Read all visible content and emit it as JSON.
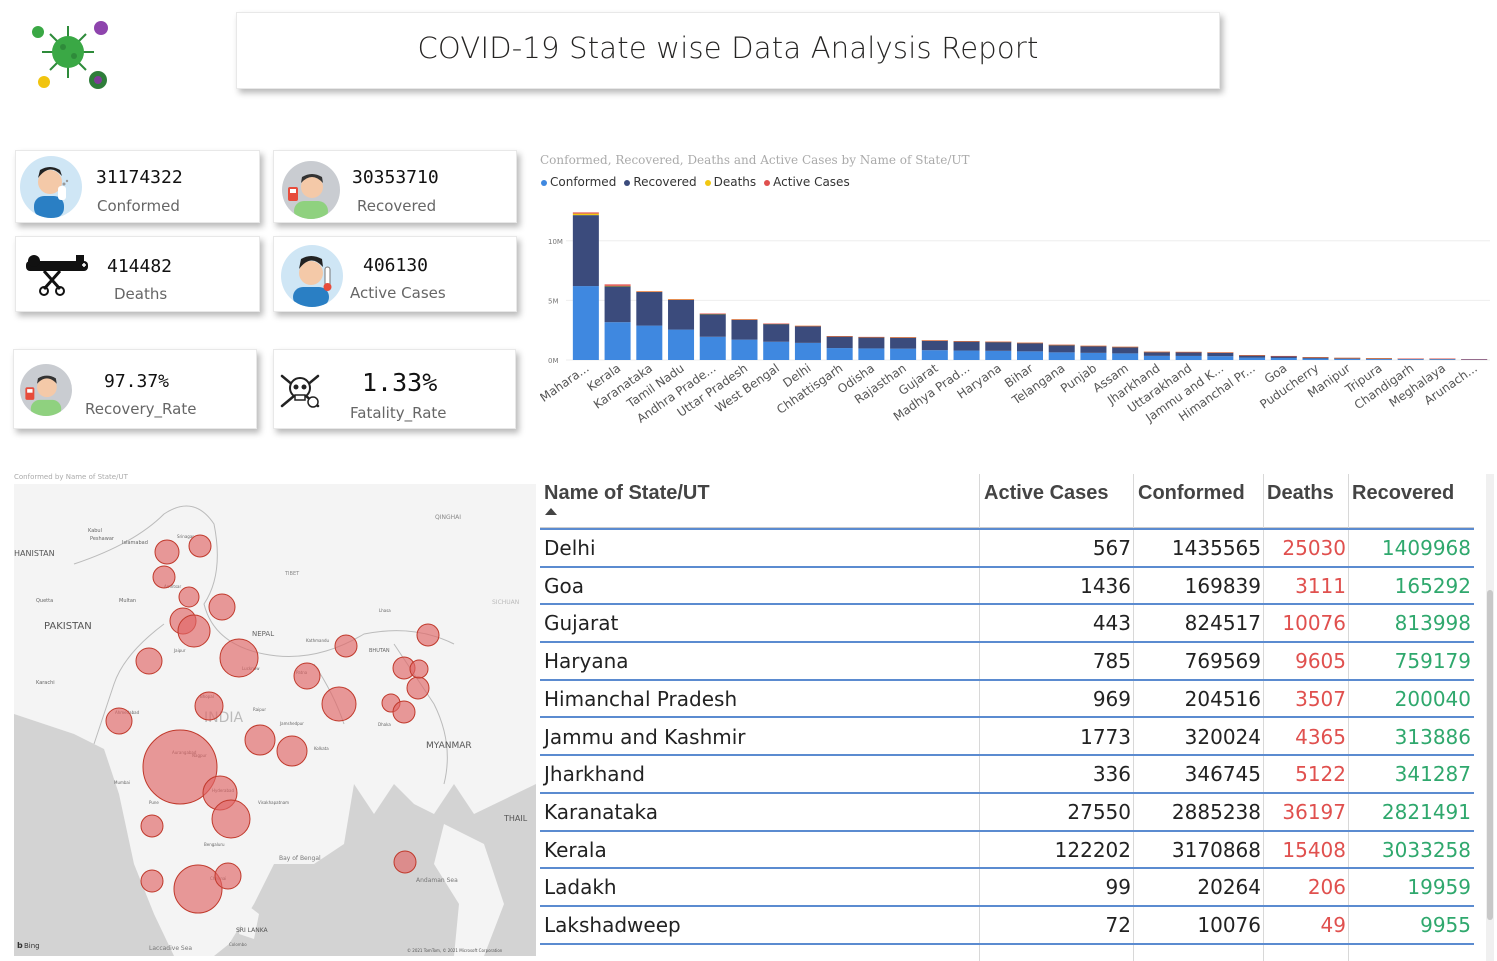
{
  "report_title": "COVID-19 State wise Data Analysis Report",
  "kpis": {
    "confirmed": {
      "value": "31174322",
      "label": "Conformed"
    },
    "recovered": {
      "value": "30353710",
      "label": "Recovered"
    },
    "deaths": {
      "value": "414482",
      "label": "Deaths"
    },
    "active": {
      "value": "406130",
      "label": "Active Cases"
    },
    "recovery_rate": {
      "value": "97.37%",
      "label": "Recovery_Rate"
    },
    "fatality_rate": {
      "value": "1.33%",
      "label": "Fatality_Rate"
    }
  },
  "colors": {
    "conformed": "#3f88e0",
    "recovered": "#3b4b7c",
    "deaths": "#f2c811",
    "active": "#e0504e",
    "death_text": "#e0504e",
    "recovered_text": "#2fa86d",
    "bubble": "#e06666"
  },
  "chart_data": [
    {
      "type": "bar",
      "stacked": true,
      "title": "Conformed, Recovered, Deaths and Active Cases by Name of State/UT",
      "legend": [
        "Conformed",
        "Recovered",
        "Deaths",
        "Active Cases"
      ],
      "legend_placement": "top-left",
      "yticks": [
        "10M",
        "5M",
        "0M"
      ],
      "ylim": [
        0,
        13000000
      ],
      "categories": [
        "Mahara...",
        "Kerala",
        "Karanataka",
        "Tamil Nadu",
        "Andhra Prade...",
        "Uttar Pradesh",
        "West Bengal",
        "Delhi",
        "Chhattisgarh",
        "Odisha",
        "Rajasthan",
        "Gujarat",
        "Madhya Prad...",
        "Haryana",
        "Bihar",
        "Telangana",
        "Punjab",
        "Assam",
        "Jharkhand",
        "Uttarakhand",
        "Jammu and K...",
        "Himanchal Pr...",
        "Goa",
        "Puducherry",
        "Manipur",
        "Tripura",
        "Chandigarh",
        "Meghalaya",
        "Arunach..."
      ],
      "series": [
        {
          "name": "Conformed",
          "values": [
            6200000,
            3170868,
            2885238,
            2550000,
            1950000,
            1708000,
            1530000,
            1435565,
            1002000,
            970000,
            953000,
            824517,
            791000,
            769569,
            725000,
            640000,
            598000,
            555000,
            346745,
            341000,
            320024,
            204516,
            169839,
            120000,
            92000,
            74000,
            62000,
            62000,
            42000
          ]
        },
        {
          "name": "Recovered",
          "values": [
            5950000,
            3033258,
            2821491,
            2500000,
            1915000,
            1684000,
            1500000,
            1409968,
            985000,
            950000,
            944000,
            813998,
            780000,
            759179,
            715000,
            630000,
            580000,
            545000,
            341287,
            333000,
            313886,
            200040,
            165292,
            117000,
            85000,
            71000,
            61000,
            58000,
            39000
          ]
        },
        {
          "name": "Deaths",
          "values": [
            128000,
            15408,
            36197,
            33000,
            13000,
            22700,
            18000,
            25030,
            13500,
            5000,
            8950,
            10076,
            10500,
            9605,
            9600,
            3800,
            16200,
            5000,
            5122,
            7350,
            4365,
            3507,
            3111,
            1800,
            1500,
            750,
            810,
            1050,
            200
          ]
        },
        {
          "name": "Active Cases",
          "values": [
            100000,
            122202,
            27550,
            25000,
            22000,
            1000,
            11000,
            567,
            3500,
            15000,
            300,
            443,
            100,
            785,
            100,
            9000,
            1000,
            5000,
            336,
            700,
            1773,
            969,
            1436,
            1200,
            5500,
            2300,
            50,
            3000,
            2800
          ]
        }
      ]
    },
    {
      "type": "bubble-map",
      "title": "Conformed by Name of State/UT",
      "map_labels": [
        "HANISTAN",
        "PAKISTAN",
        "INDIA",
        "NEPAL",
        "BHUTAN",
        "MYANMAR",
        "QINGHAI",
        "SICHUAN",
        "TIBET",
        "THAIL",
        "SRI LANKA",
        "Bay of Bengal",
        "Andaman Sea",
        "Laccadive Sea",
        "Kabul",
        "Peshawar",
        "Islamabad",
        "Srinagar",
        "Multan",
        "Quetta",
        "Amritsar",
        "Jaipur",
        "Lucknow",
        "Kathmandu",
        "Patna",
        "Ahmedabad",
        "Bhopal",
        "Aurangabad",
        "Pune",
        "Hyderabad",
        "Bengaluru",
        "Chennai",
        "Kolkata",
        "Dhaka",
        "Mumbai",
        "Karachi",
        "Lhasa",
        "Colombo",
        "Visakhapatnam",
        "Jamshedpur",
        "Raipur",
        "Nagpur"
      ],
      "bing": "Bing",
      "copyright": "© 2021 TomTom, © 2021 Microsoft Corporation"
    }
  ],
  "table": {
    "headers": {
      "state": "Name of State/UT",
      "active": "Active Cases",
      "confirmed": "Conformed",
      "deaths": "Deaths",
      "recovered": "Recovered"
    },
    "rows": [
      {
        "state": "Delhi",
        "active": "567",
        "confirmed": "1435565",
        "deaths": "25030",
        "recovered": "1409968"
      },
      {
        "state": "Goa",
        "active": "1436",
        "confirmed": "169839",
        "deaths": "3111",
        "recovered": "165292"
      },
      {
        "state": "Gujarat",
        "active": "443",
        "confirmed": "824517",
        "deaths": "10076",
        "recovered": "813998"
      },
      {
        "state": "Haryana",
        "active": "785",
        "confirmed": "769569",
        "deaths": "9605",
        "recovered": "759179"
      },
      {
        "state": "Himanchal Pradesh",
        "active": "969",
        "confirmed": "204516",
        "deaths": "3507",
        "recovered": "200040"
      },
      {
        "state": "Jammu and Kashmir",
        "active": "1773",
        "confirmed": "320024",
        "deaths": "4365",
        "recovered": "313886"
      },
      {
        "state": "Jharkhand",
        "active": "336",
        "confirmed": "346745",
        "deaths": "5122",
        "recovered": "341287"
      },
      {
        "state": "Karanataka",
        "active": "27550",
        "confirmed": "2885238",
        "deaths": "36197",
        "recovered": "2821491"
      },
      {
        "state": "Kerala",
        "active": "122202",
        "confirmed": "3170868",
        "deaths": "15408",
        "recovered": "3033258"
      },
      {
        "state": "Ladakh",
        "active": "99",
        "confirmed": "20264",
        "deaths": "206",
        "recovered": "19959"
      },
      {
        "state": "Lakshadweep",
        "active": "72",
        "confirmed": "10076",
        "deaths": "49",
        "recovered": "9955"
      }
    ]
  }
}
